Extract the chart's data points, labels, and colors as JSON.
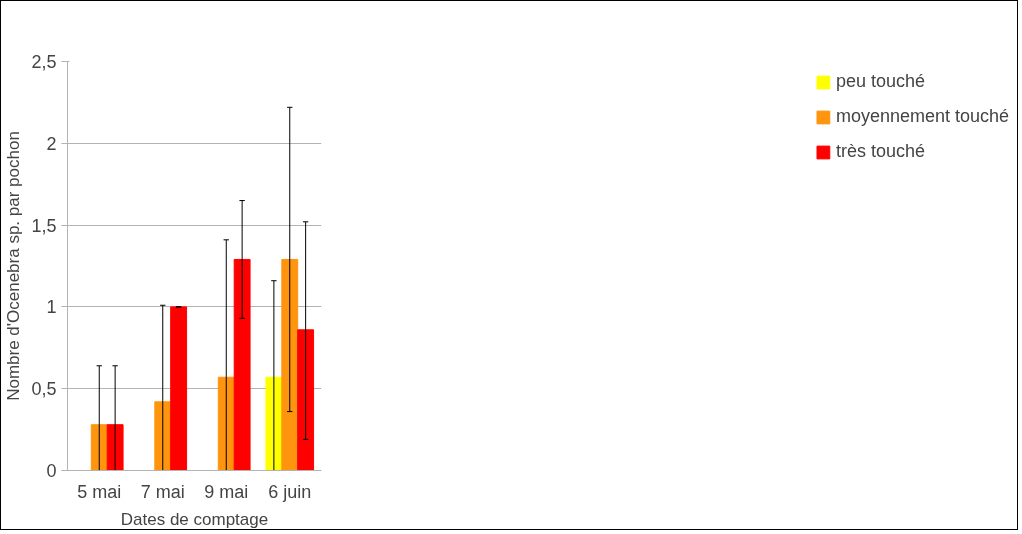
{
  "chart_data": {
    "type": "bar",
    "xlabel": "Dates de comptage",
    "ylabel": "Nombre d'Ocenebra sp. par pochon",
    "categories": [
      "5 mai",
      "7 mai",
      "9 mai",
      "6 juin"
    ],
    "series": [
      {
        "name": "peu touché",
        "color": "#ffff00",
        "values": [
          0,
          0,
          0,
          0.57
        ],
        "errors": [
          null,
          null,
          null,
          [
            0,
            1.16
          ]
        ]
      },
      {
        "name": "moyennement touché",
        "color": "#ff950e",
        "values": [
          0.28,
          0.42,
          0.57,
          1.29
        ],
        "errors": [
          [
            0,
            0.64
          ],
          [
            0,
            1.01
          ],
          [
            0,
            1.41
          ],
          [
            0.36,
            2.22
          ]
        ]
      },
      {
        "name": "très touché",
        "color": "#ff0000",
        "values": [
          0.28,
          1.0,
          1.29,
          0.86
        ],
        "errors": [
          [
            0,
            0.64
          ],
          [
            1.0,
            1.0
          ],
          [
            0.93,
            1.65
          ],
          [
            0.19,
            1.52
          ]
        ]
      }
    ],
    "ylim": [
      0,
      2.5
    ],
    "yticks": [
      {
        "value": 0,
        "label": "0"
      },
      {
        "value": 0.5,
        "label": "0,5"
      },
      {
        "value": 1,
        "label": "1"
      },
      {
        "value": 1.5,
        "label": "1,5"
      },
      {
        "value": 2,
        "label": "2"
      },
      {
        "value": 2.5,
        "label": "2,5"
      }
    ],
    "grid": "y",
    "legend": "right"
  }
}
